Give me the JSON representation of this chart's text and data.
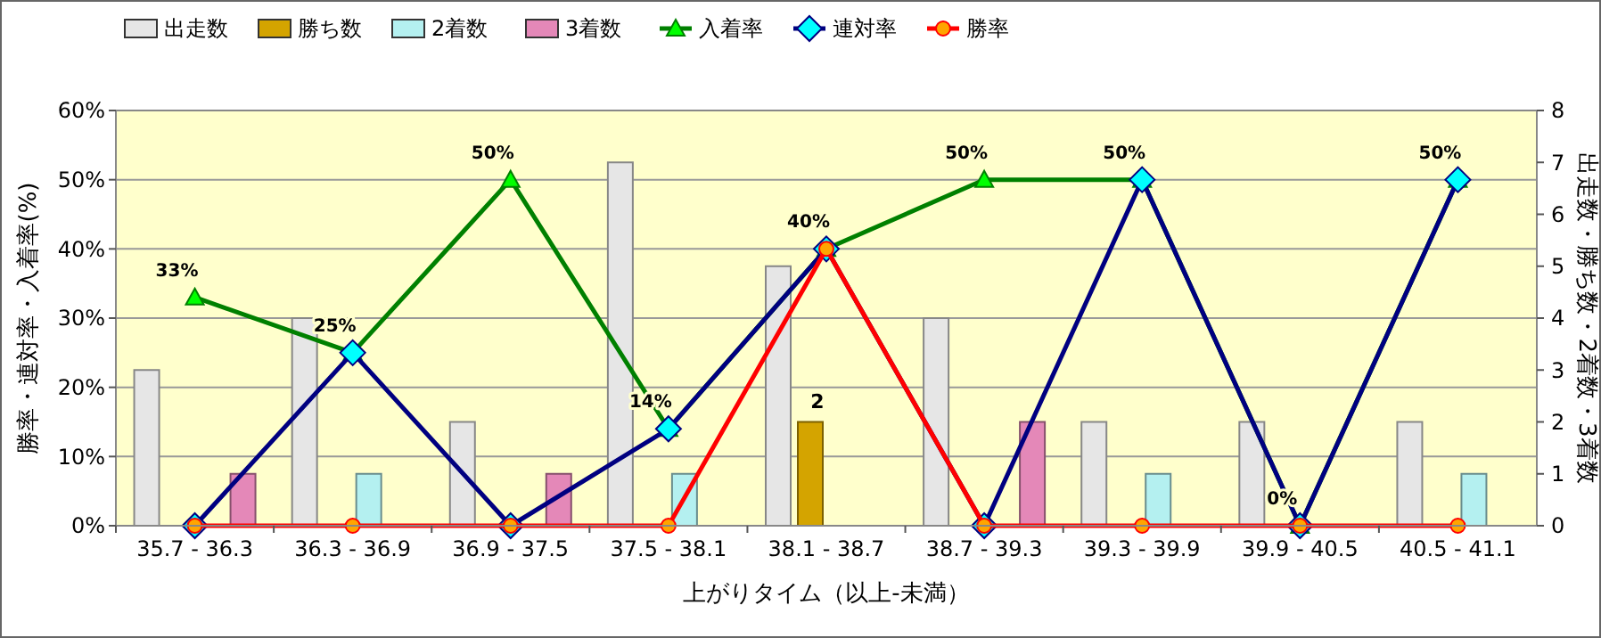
{
  "chart_data": {
    "type": "bar",
    "xlabel": "上がりタイム（以上-未満）",
    "ylabel": "勝率・連対率・入着率(%)",
    "y2label": "出走数・勝ち数・2着数・3着数",
    "categories": [
      "35.7 - 36.3",
      "36.3 - 36.9",
      "36.9 - 37.5",
      "37.5 - 38.1",
      "38.1 - 38.7",
      "38.7 - 39.3",
      "39.3 - 39.9",
      "39.9 - 40.5",
      "40.5 - 41.1"
    ],
    "ylim": [
      0,
      60
    ],
    "yticks": [
      {
        "value": 0,
        "label": "0%"
      },
      {
        "value": 10,
        "label": "10%"
      },
      {
        "value": 20,
        "label": "20%"
      },
      {
        "value": 30,
        "label": "30%"
      },
      {
        "value": 40,
        "label": "40%"
      },
      {
        "value": 50,
        "label": "50%"
      },
      {
        "value": 60,
        "label": "60%"
      }
    ],
    "y2lim": [
      0,
      8
    ],
    "y2ticks": [
      0,
      1,
      2,
      3,
      4,
      5,
      6,
      7,
      8
    ],
    "grid": "y",
    "legend": "top",
    "series": [
      {
        "name": "出走数",
        "axis": "y2",
        "color": "#e6e6e6",
        "values": [
          3,
          4,
          2,
          7,
          5,
          4,
          2,
          2,
          2
        ]
      },
      {
        "name": "勝ち数",
        "axis": "y2",
        "color": "#d4a400",
        "values": [
          0,
          0,
          0,
          0,
          2,
          0,
          0,
          0,
          0
        ],
        "value_labels": [
          null,
          null,
          null,
          null,
          "2",
          null,
          null,
          null,
          null
        ]
      },
      {
        "name": "2着数",
        "axis": "y2",
        "color": "#b4f0f0",
        "values": [
          0,
          1,
          0,
          1,
          0,
          0,
          1,
          0,
          1
        ]
      },
      {
        "name": "3着数",
        "axis": "y2",
        "color": "#e488b8",
        "values": [
          1,
          0,
          1,
          0,
          0,
          2,
          0,
          0,
          0
        ]
      },
      {
        "name": "入着率",
        "type": "line",
        "color": "#008000",
        "marker": "triangle",
        "values": [
          33,
          25,
          50,
          14,
          40,
          50,
          50,
          0,
          50
        ],
        "value_labels": [
          "33%",
          "25%",
          "50%",
          "14%",
          "40%",
          "50%",
          "50%",
          "0%",
          "50%"
        ]
      },
      {
        "name": "連対率",
        "type": "line",
        "color": "#000080",
        "marker": "diamond",
        "values": [
          0,
          25,
          0,
          14,
          40,
          0,
          50,
          0,
          50
        ]
      },
      {
        "name": "勝率",
        "type": "line",
        "color": "#ff0000",
        "marker": "circle",
        "values": [
          0,
          0,
          0,
          0,
          40,
          0,
          0,
          0,
          0
        ]
      }
    ]
  }
}
